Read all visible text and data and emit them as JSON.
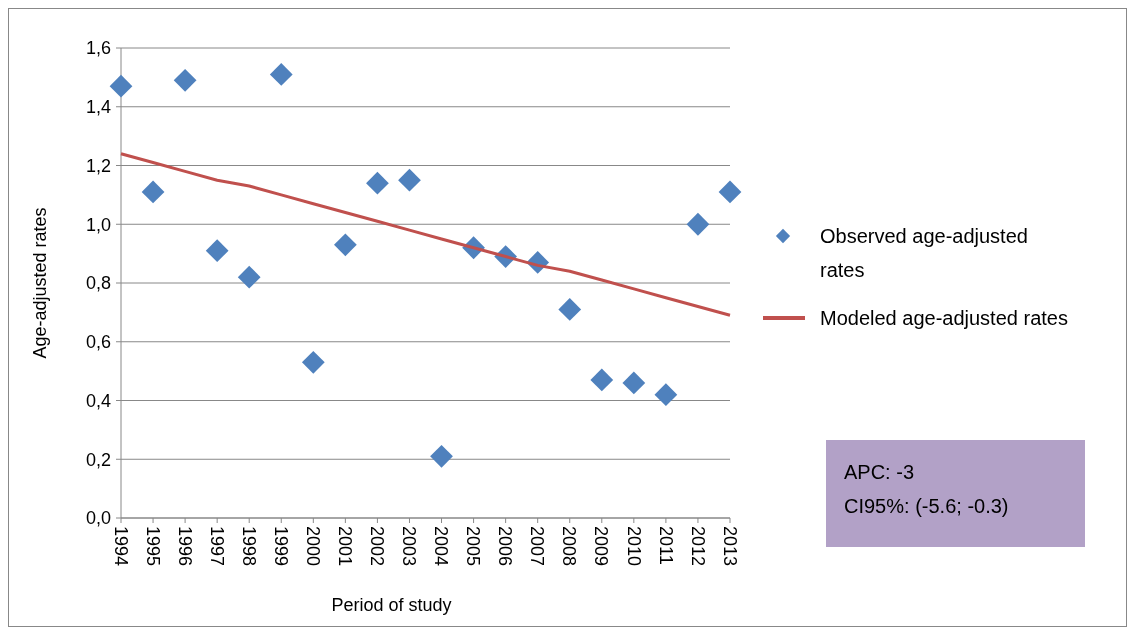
{
  "chart_data": {
    "type": "scatter",
    "xlabel": "Period of study",
    "ylabel": "Age-adjusted rates",
    "categories": [
      "1994",
      "1995",
      "1996",
      "1997",
      "1998",
      "1999",
      "2000",
      "2001",
      "2002",
      "2003",
      "2004",
      "2005",
      "2006",
      "2007",
      "2008",
      "2009",
      "2010",
      "2011",
      "2012",
      "2013"
    ],
    "ylim": [
      0,
      1.6
    ],
    "yticks": [
      {
        "value": 0,
        "label": "0,0"
      },
      {
        "value": 0.2,
        "label": "0,2"
      },
      {
        "value": 0.4,
        "label": "0,4"
      },
      {
        "value": 0.6,
        "label": "0,6"
      },
      {
        "value": 0.8,
        "label": "0,8"
      },
      {
        "value": 1,
        "label": "1,0"
      },
      {
        "value": 1.2,
        "label": "1,2"
      },
      {
        "value": 1.4,
        "label": "1,4"
      },
      {
        "value": 1.6,
        "label": "1,6"
      }
    ],
    "grid": "y",
    "legend": "right",
    "series": [
      {
        "name": "Observed age-adjusted rates",
        "marker": "diamond",
        "color": "#4f81bd",
        "values": [
          1.47,
          1.11,
          1.49,
          0.91,
          0.82,
          1.51,
          0.53,
          0.93,
          1.14,
          1.15,
          0.21,
          0.92,
          0.89,
          0.87,
          0.71,
          0.47,
          0.46,
          0.42,
          1.0,
          1.11
        ]
      },
      {
        "name": "Modeled age-adjusted rates",
        "type": "line",
        "color": "#c0504d",
        "values": [
          1.24,
          1.21,
          1.18,
          1.15,
          1.13,
          1.1,
          1.07,
          1.04,
          1.01,
          0.98,
          0.95,
          0.92,
          0.89,
          0.86,
          0.84,
          0.81,
          0.78,
          0.75,
          0.72,
          0.69
        ]
      }
    ],
    "annotations": [
      "APC: -3",
      "CI95%: (-5.6; -0.3)"
    ]
  }
}
